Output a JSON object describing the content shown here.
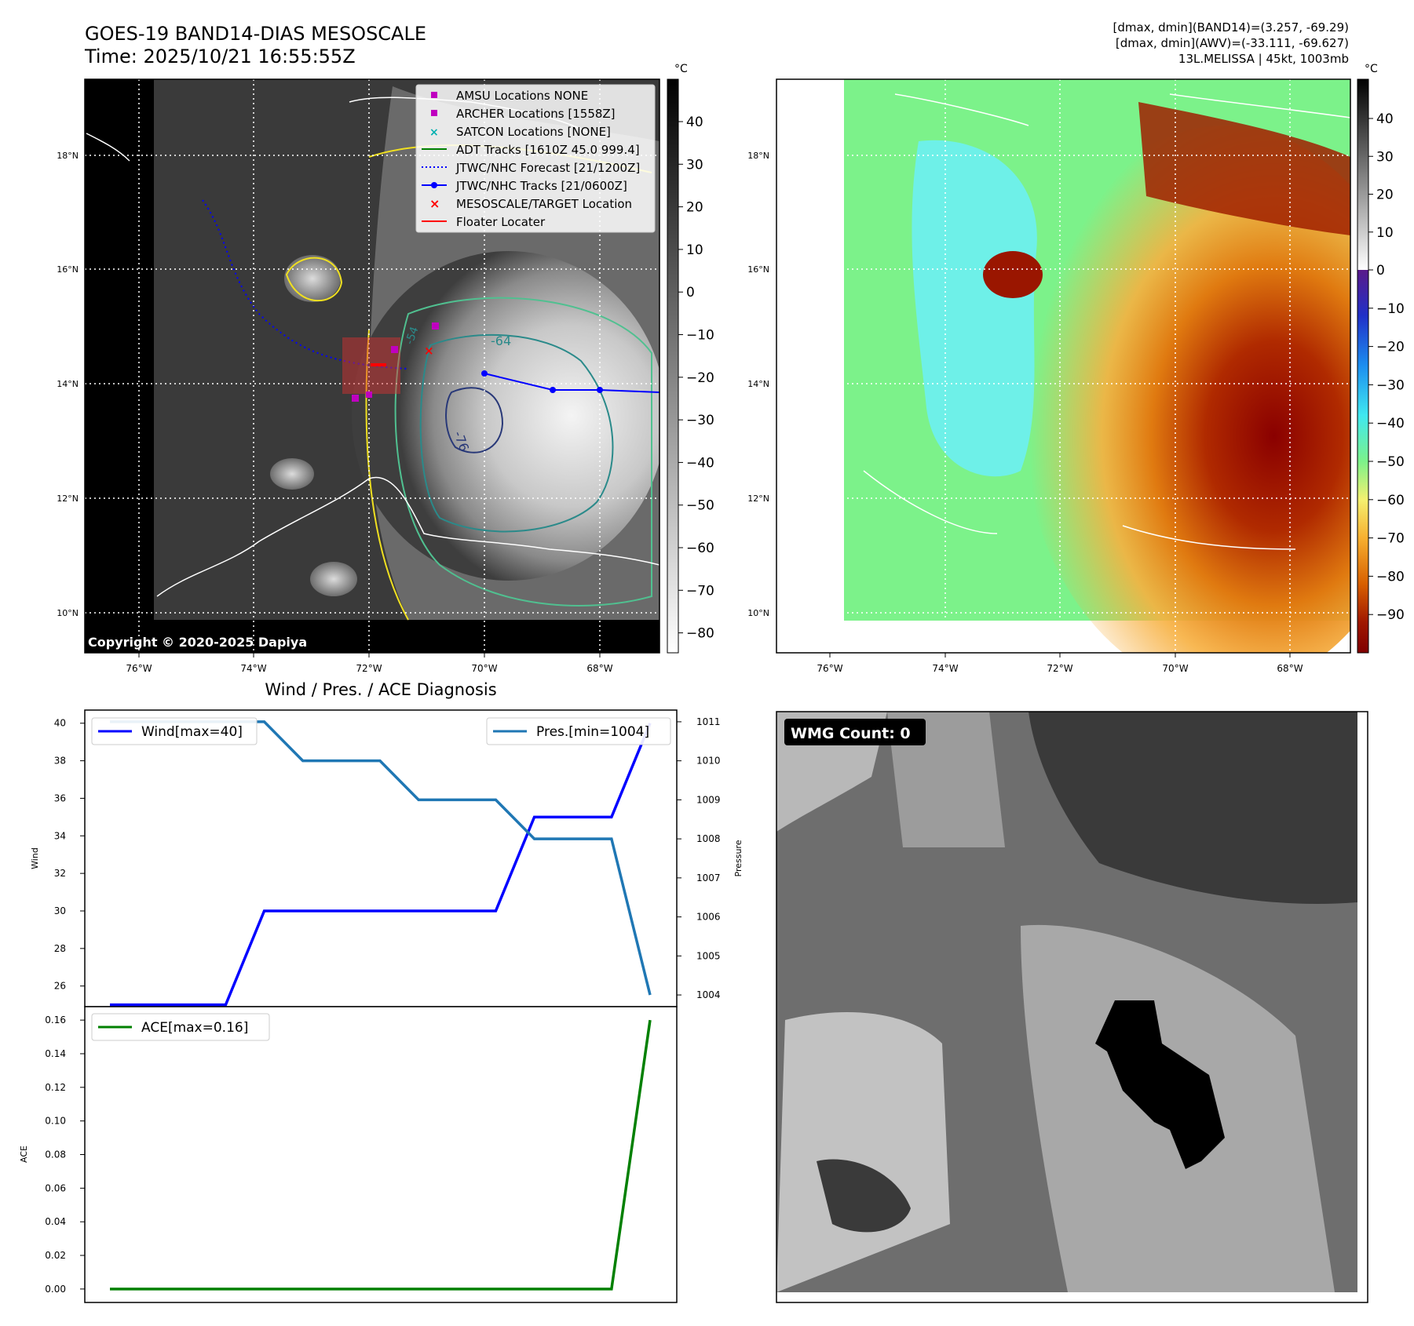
{
  "header": {
    "title_line1": "GOES-19 BAND14-DIAS MESOSCALE",
    "title_line2": "Time: 2025/10/21 16:55:55Z",
    "right_line1": "[dmax, dmin](BAND14)=(3.257, -69.29)",
    "right_line2": "[dmax, dmin](AWV)=(-33.111, -69.627)",
    "right_line3": "13L.MELISSA | 45kt, 1003mb"
  },
  "map": {
    "lat_ticks": [
      "18°N",
      "16°N",
      "14°N",
      "12°N",
      "10°N"
    ],
    "lon_ticks": [
      "76°W",
      "74°W",
      "72°W",
      "70°W",
      "68°W"
    ],
    "copyright": "Copyright © 2020-2025 Dapiya",
    "contour_labels": [
      "-64",
      "-76",
      "-54"
    ],
    "legend": [
      {
        "label": "AMSU Locations NONE",
        "color": "#c000c0"
      },
      {
        "label": "ARCHER Locations [1558Z]",
        "color": "#c000c0"
      },
      {
        "label": "SATCON Locations [NONE]",
        "color": "#00b0b0"
      },
      {
        "label": "ADT Tracks [1610Z 45.0 999.4]",
        "color": "#008000"
      },
      {
        "label": "JTWC/NHC Forecast [21/1200Z]",
        "color": "#0000ff"
      },
      {
        "label": "JTWC/NHC Tracks [21/0600Z]",
        "color": "#0000ff"
      },
      {
        "label": "MESOSCALE/TARGET Location",
        "color": "#ff0000"
      },
      {
        "label": "Floater Locater",
        "color": "#ff0000"
      }
    ]
  },
  "colorbar_gray": {
    "unit": "°C",
    "ticks": [
      "40",
      "30",
      "20",
      "10",
      "0",
      "−10",
      "−20",
      "−30",
      "−40",
      "−50",
      "−60",
      "−70",
      "−80"
    ]
  },
  "colorbar_color": {
    "unit": "°C",
    "ticks": [
      "40",
      "30",
      "20",
      "10",
      "0",
      "−10",
      "−20",
      "−30",
      "−40",
      "−50",
      "−60",
      "−70",
      "−80",
      "−90"
    ]
  },
  "wmg": {
    "label": "WMG Count: 0"
  },
  "chart_data": [
    {
      "type": "line",
      "title": "Wind / Pres. / ACE Diagnosis",
      "ylabel": "Wind",
      "y2label": "Pressure",
      "ylim": [
        24.9,
        40.7
      ],
      "y2lim": [
        1003.7,
        1011.3
      ],
      "yticks": [
        "40",
        "38",
        "36",
        "34",
        "32",
        "30",
        "28",
        "26"
      ],
      "y2ticks": [
        "1011",
        "1010",
        "1009",
        "1008",
        "1007",
        "1006",
        "1005",
        "1004"
      ],
      "x": [
        0,
        1,
        2,
        3,
        4,
        5,
        6,
        7,
        8,
        9,
        10,
        11,
        12,
        13,
        14
      ],
      "series": [
        {
          "name": "Wind[max=40]",
          "axis": "left",
          "color": "#0000ff",
          "values": [
            25,
            25,
            25,
            25,
            30,
            30,
            30,
            30,
            30,
            30,
            30,
            35,
            35,
            35,
            40
          ]
        },
        {
          "name": "Pres.[min=1004]",
          "axis": "right",
          "color": "#1f77b4",
          "values": [
            1011,
            1011,
            1011,
            1011,
            1011,
            1010,
            1010,
            1010,
            1009,
            1009,
            1009,
            1008,
            1008,
            1008,
            1004
          ]
        }
      ]
    },
    {
      "type": "line",
      "ylabel": "ACE",
      "ylim": [
        -0.008,
        0.168
      ],
      "yticks": [
        "0.16",
        "0.14",
        "0.12",
        "0.10",
        "0.08",
        "0.06",
        "0.04",
        "0.02",
        "0.00"
      ],
      "x": [
        0,
        1,
        2,
        3,
        4,
        5,
        6,
        7,
        8,
        9,
        10,
        11,
        12,
        13,
        14
      ],
      "series": [
        {
          "name": "ACE[max=0.16]",
          "color": "#008000",
          "values": [
            0,
            0,
            0,
            0,
            0,
            0,
            0,
            0,
            0,
            0,
            0,
            0,
            0,
            0,
            0.16
          ]
        }
      ]
    }
  ]
}
